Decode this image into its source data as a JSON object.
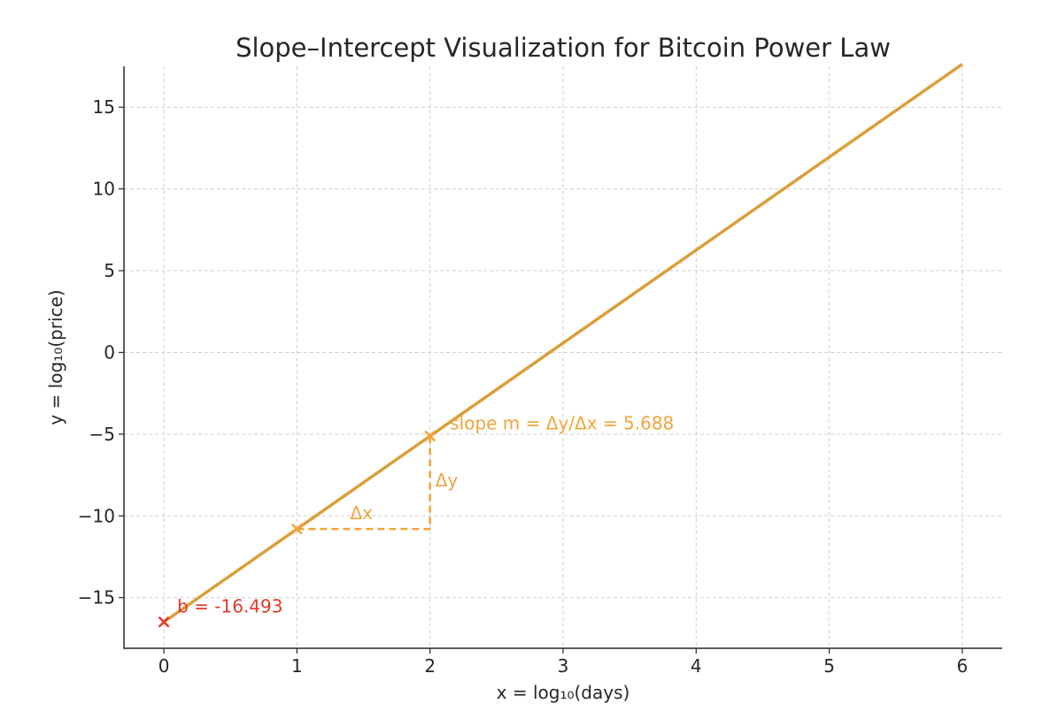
{
  "chart_data": {
    "type": "line",
    "title": "Slope–Intercept Visualization for Bitcoin Power Law",
    "xlabel": "x = log₁₀(days)",
    "ylabel": "y = log₁₀(price)",
    "xlim": [
      -0.3,
      6.3
    ],
    "ylim": [
      -18.1,
      17.5
    ],
    "xticks": [
      0,
      1,
      2,
      3,
      4,
      5,
      6
    ],
    "xtick_labels": [
      "0",
      "1",
      "2",
      "3",
      "4",
      "5",
      "6"
    ],
    "yticks": [
      -15,
      -10,
      -5,
      0,
      5,
      10,
      15
    ],
    "ytick_labels": [
      "−15",
      "−10",
      "−5",
      "0",
      "5",
      "10",
      "15"
    ],
    "grid": true,
    "line": {
      "x": [
        0,
        6
      ],
      "y": [
        -16.493,
        17.635
      ],
      "color": "#d9a03a"
    },
    "slope": 5.688,
    "intercept": -16.493,
    "markers": [
      {
        "x": 0,
        "y": -16.493,
        "color": "#e03a2a"
      },
      {
        "x": 1,
        "y": -10.805,
        "color": "#f0a43a"
      },
      {
        "x": 2,
        "y": -5.117,
        "color": "#f0a43a"
      }
    ],
    "triangle": {
      "x0": 1,
      "y0": -10.805,
      "x1": 2,
      "y1": -5.117,
      "color": "#f0a43a"
    },
    "annotations": {
      "intercept": {
        "text": "b = -16.493",
        "x": 0.1,
        "y": -15.9,
        "color": "#e03a2a"
      },
      "slope": {
        "text": "slope m = Δy/Δx = 5.688",
        "x": 2.15,
        "y": -4.7,
        "color": "#f0a43a"
      },
      "dx": {
        "text": "Δx",
        "x": 1.4,
        "y": -10.2,
        "color": "#f0a43a"
      },
      "dy": {
        "text": "Δy",
        "x": 2.04,
        "y": -8.2,
        "color": "#f0a43a"
      }
    }
  }
}
